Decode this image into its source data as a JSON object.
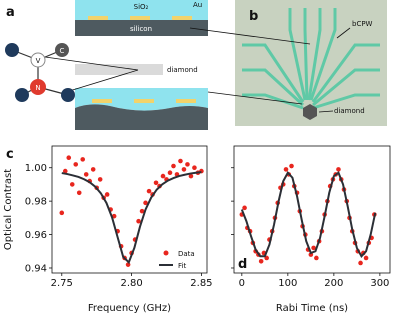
{
  "panel_a": {
    "label": "a",
    "oxide": "SiO₂",
    "metal": "Au",
    "substrate": "silicon",
    "diamond": "diamond",
    "atoms": [
      "V",
      "C",
      "N"
    ]
  },
  "panel_b": {
    "label": "b",
    "waveguide": "bCPW",
    "diamond": "diamond"
  },
  "chart_data": [
    {
      "type": "scatter",
      "panel_label": "c",
      "x_label": "Frequency (GHz)",
      "y_label": "Optical Contrast",
      "xlim": [
        2.743,
        2.854
      ],
      "ylim": [
        0.937,
        1.013
      ],
      "xticks": [
        2.75,
        {
          "value": 2.8,
          "label": "2.80"
        },
        2.85
      ],
      "yticks": [
        0.94,
        0.96,
        0.98,
        {
          "value": 1,
          "label": "1.00"
        }
      ],
      "legend": "lower right",
      "series": [
        {
          "name": "Data",
          "color": "#e8261e",
          "mode": "markers",
          "x": [
            2.75,
            2.7525,
            2.755,
            2.7575,
            2.76,
            2.7625,
            2.765,
            2.7675,
            2.77,
            2.7725,
            2.775,
            2.7775,
            2.78,
            2.7825,
            2.785,
            2.7875,
            2.79,
            2.7925,
            2.795,
            2.7975,
            2.8,
            2.8025,
            2.805,
            2.8075,
            2.81,
            2.8125,
            2.815,
            2.8175,
            2.82,
            2.8225,
            2.825,
            2.8275,
            2.83,
            2.8325,
            2.835,
            2.8375,
            2.84,
            2.8425,
            2.845,
            2.8475,
            2.85
          ],
          "values": [
            0.973,
            0.998,
            1.006,
            0.99,
            1.002,
            0.985,
            1.005,
            0.996,
            0.992,
            0.999,
            0.988,
            0.993,
            0.982,
            0.984,
            0.975,
            0.971,
            0.962,
            0.953,
            0.946,
            0.942,
            0.949,
            0.957,
            0.968,
            0.974,
            0.979,
            0.986,
            0.984,
            0.991,
            0.989,
            0.995,
            0.993,
            0.997,
            1.001,
            0.996,
            1.004,
            0.999,
            1.002,
            0.995,
            1.0,
            0.997,
            0.998
          ]
        },
        {
          "name": "Fit",
          "color": "#2b2f36",
          "mode": "line",
          "x": [
            2.75,
            2.754,
            2.758,
            2.762,
            2.766,
            2.77,
            2.774,
            2.778,
            2.782,
            2.786,
            2.79,
            2.794,
            2.798,
            2.802,
            2.806,
            2.81,
            2.814,
            2.818,
            2.822,
            2.826,
            2.83,
            2.834,
            2.838,
            2.842,
            2.846,
            2.85
          ],
          "values": [
            0.9968,
            0.9962,
            0.9954,
            0.9945,
            0.9931,
            0.9913,
            0.9886,
            0.9847,
            0.9789,
            0.9703,
            0.9584,
            0.9466,
            0.9434,
            0.9521,
            0.9647,
            0.975,
            0.9821,
            0.9869,
            0.9901,
            0.9923,
            0.9938,
            0.995,
            0.9958,
            0.9965,
            0.997,
            0.9974
          ]
        }
      ]
    },
    {
      "type": "scatter",
      "panel_label": "d",
      "x_label": "Rabi Time (ns)",
      "xlim": [
        -17,
        322
      ],
      "ylim": [
        0.937,
        1.013
      ],
      "xticks": [
        0,
        100,
        200,
        300
      ],
      "yticks": [
        0.94,
        0.96,
        0.98,
        1
      ],
      "series": [
        {
          "color": "#e8261e",
          "mode": "markers",
          "x": [
            0,
            6,
            12,
            18,
            24,
            30,
            36,
            42,
            48,
            54,
            60,
            66,
            72,
            78,
            84,
            90,
            96,
            102,
            108,
            114,
            120,
            126,
            132,
            138,
            144,
            150,
            156,
            162,
            168,
            174,
            180,
            186,
            192,
            198,
            204,
            210,
            216,
            222,
            228,
            234,
            240,
            246,
            252,
            258,
            264,
            270,
            276,
            282,
            288
          ],
          "values": [
            0.972,
            0.976,
            0.964,
            0.962,
            0.955,
            0.95,
            0.948,
            0.944,
            0.949,
            0.946,
            0.957,
            0.962,
            0.97,
            0.979,
            0.988,
            0.99,
            0.999,
            0.996,
            1.001,
            0.989,
            0.985,
            0.974,
            0.965,
            0.96,
            0.951,
            0.948,
            0.952,
            0.946,
            0.956,
            0.962,
            0.972,
            0.98,
            0.989,
            0.993,
            0.996,
            0.999,
            0.993,
            0.987,
            0.98,
            0.97,
            0.962,
            0.955,
            0.95,
            0.943,
            0.949,
            0.946,
            0.955,
            0.958,
            0.972
          ]
        },
        {
          "color": "#2b2f36",
          "mode": "line",
          "x": [
            0,
            10,
            20,
            30,
            40,
            50,
            60,
            70,
            80,
            90,
            100,
            110,
            120,
            130,
            140,
            150,
            160,
            170,
            180,
            190,
            200,
            210,
            220,
            230,
            240,
            250,
            260,
            270,
            280,
            290
          ],
          "values": [
            0.975,
            0.968,
            0.959,
            0.951,
            0.947,
            0.947,
            0.954,
            0.966,
            0.98,
            0.992,
            0.997,
            0.994,
            0.983,
            0.969,
            0.956,
            0.949,
            0.95,
            0.958,
            0.971,
            0.985,
            0.995,
            0.997,
            0.99,
            0.977,
            0.963,
            0.952,
            0.947,
            0.95,
            0.96,
            0.973
          ]
        }
      ]
    }
  ]
}
